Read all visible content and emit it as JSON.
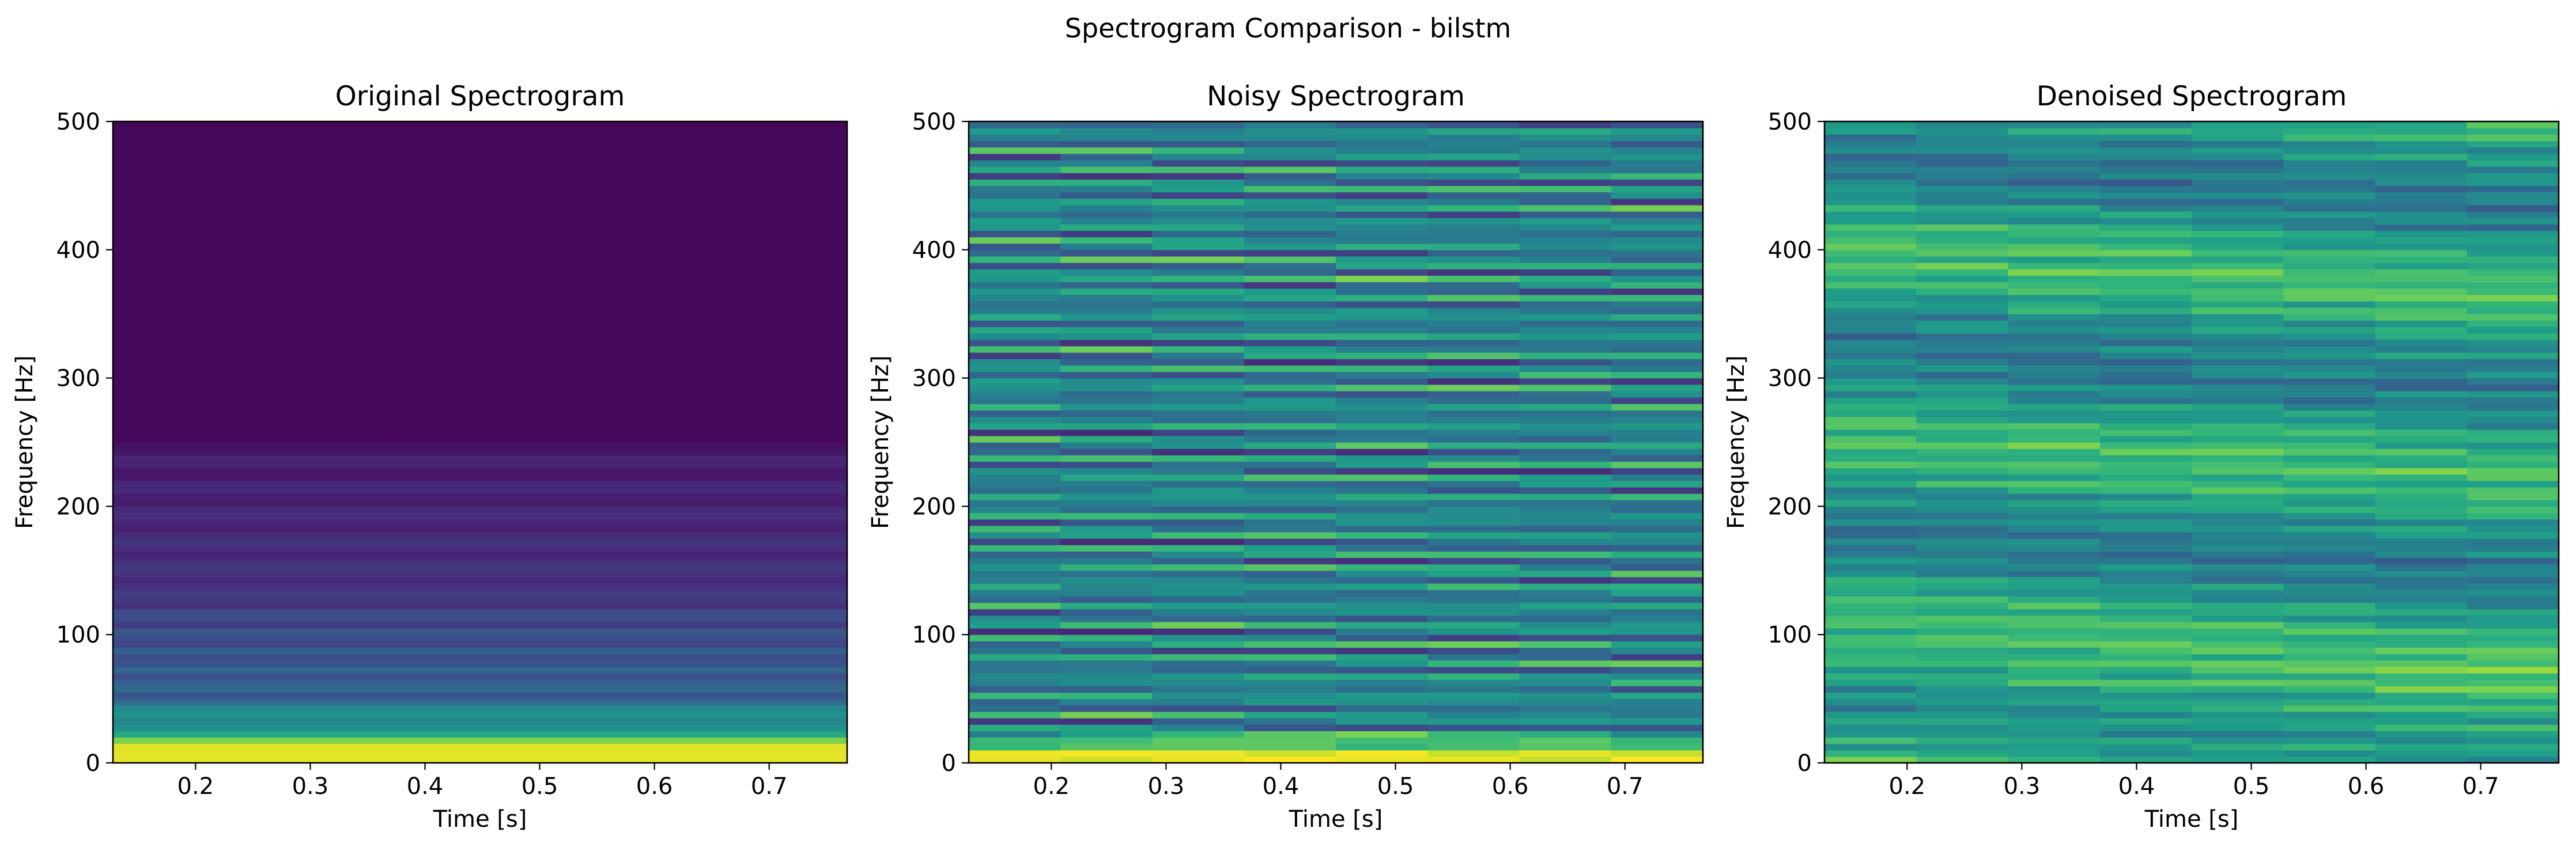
{
  "figure": {
    "suptitle": "Spectrogram Comparison - bilstm"
  },
  "colormap": {
    "name": "viridis",
    "stops": [
      "#440154",
      "#482878",
      "#3e4989",
      "#31688e",
      "#26828e",
      "#1f9e89",
      "#35b779",
      "#6ece58",
      "#b5de2b",
      "#fde725"
    ]
  },
  "chart_data": [
    {
      "type": "heatmap",
      "title": "Original Spectrogram",
      "xlabel": "Time [s]",
      "ylabel": "Frequency [Hz]",
      "xlim": [
        0.128,
        0.768
      ],
      "ylim": [
        0,
        500
      ],
      "xticks": [
        0.2,
        0.3,
        0.4,
        0.5,
        0.6,
        0.7
      ],
      "xtick_labels": [
        "0.2",
        "0.3",
        "0.4",
        "0.5",
        "0.6",
        "0.7"
      ],
      "yticks": [
        0,
        100,
        200,
        300,
        400,
        500
      ],
      "ytick_labels": [
        "0",
        "100",
        "200",
        "300",
        "400",
        "500"
      ],
      "pattern": "clean_lowfreq",
      "description": "Energy concentrated below ~20 Hz (bright yellow), moderate bands 20-120 Hz, near-zero above 250 Hz"
    },
    {
      "type": "heatmap",
      "title": "Noisy Spectrogram",
      "xlabel": "Time [s]",
      "ylabel": "Frequency [Hz]",
      "xlim": [
        0.128,
        0.768
      ],
      "ylim": [
        0,
        500
      ],
      "xticks": [
        0.2,
        0.3,
        0.4,
        0.5,
        0.6,
        0.7
      ],
      "xtick_labels": [
        "0.2",
        "0.3",
        "0.4",
        "0.5",
        "0.6",
        "0.7"
      ],
      "yticks": [
        0,
        100,
        200,
        300,
        400,
        500
      ],
      "ytick_labels": [
        "0",
        "100",
        "200",
        "300",
        "400",
        "500"
      ],
      "pattern": "noisy",
      "description": "Broadband noise in green/teal horizontal streaks, bright band below ~15 Hz"
    },
    {
      "type": "heatmap",
      "title": "Denoised Spectrogram",
      "xlabel": "Time [s]",
      "ylabel": "Frequency [Hz]",
      "xlim": [
        0.128,
        0.768
      ],
      "ylim": [
        0,
        500
      ],
      "xticks": [
        0.2,
        0.3,
        0.4,
        0.5,
        0.6,
        0.7
      ],
      "xtick_labels": [
        "0.2",
        "0.3",
        "0.4",
        "0.5",
        "0.6",
        "0.7"
      ],
      "yticks": [
        0,
        100,
        200,
        300,
        400,
        500
      ],
      "ytick_labels": [
        "0",
        "100",
        "200",
        "300",
        "400",
        "500"
      ],
      "pattern": "denoised",
      "description": "Green/yellow-green horizontal streaks, brighter yellow-green at low frequencies"
    }
  ]
}
